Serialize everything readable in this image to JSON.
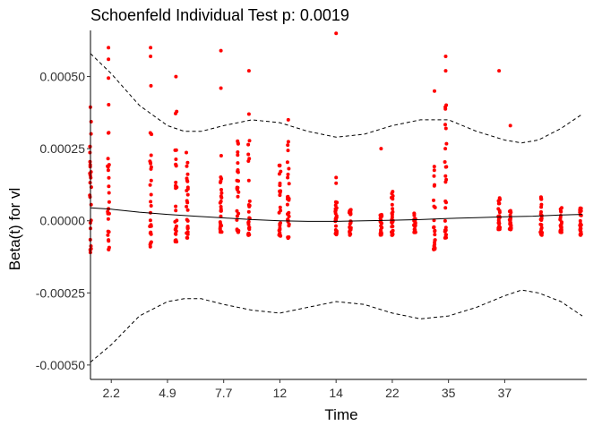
{
  "chart_data": {
    "type": "scatter",
    "title": "Schoenfeld Individual Test p: 0.0019",
    "xlabel": "Time",
    "ylabel": "Beta(t) for vl",
    "x_tick_labels": [
      "2.2",
      "4.9",
      "7.7",
      "12",
      "14",
      "22",
      "35",
      "37"
    ],
    "x_tick_index": [
      1,
      2,
      3,
      4,
      5,
      6,
      7,
      8
    ],
    "xlim": [
      0.63,
      9.46
    ],
    "y_ticks": [
      -0.0005,
      -0.00025,
      0,
      0.00025,
      0.0005
    ],
    "y_tick_labels": [
      "-0.00050",
      "-0.00025",
      "0.00000",
      "0.00025",
      "0.00050"
    ],
    "ylim": [
      -0.00055,
      0.00066
    ],
    "grid": false,
    "point_color": "#ff0000",
    "line_color": "#000000",
    "smooth_fit": {
      "x": [
        0.63,
        1.0,
        1.5,
        2.0,
        2.5,
        3.0,
        3.5,
        4.0,
        4.5,
        5.0,
        5.5,
        6.0,
        6.5,
        7.0,
        7.5,
        8.0,
        8.5,
        9.0,
        9.38
      ],
      "y": [
        4.5e-05,
        4e-05,
        3e-05,
        2.2e-05,
        1.6e-05,
        1e-05,
        4e-06,
        0.0,
        -2e-06,
        -2e-06,
        0.0,
        2e-06,
        4e-06,
        8e-06,
        1.1e-05,
        1.4e-05,
        1.6e-05,
        2e-05,
        2.2e-05
      ]
    },
    "upper_ci": {
      "x": [
        0.63,
        1.0,
        1.5,
        2.0,
        2.3,
        2.6,
        3.0,
        3.5,
        4.0,
        4.5,
        5.0,
        5.5,
        6.0,
        6.5,
        7.0,
        7.5,
        8.0,
        8.3,
        8.6,
        9.0,
        9.38
      ],
      "y": [
        0.00058,
        0.00051,
        0.0004,
        0.00033,
        0.00031,
        0.00031,
        0.00033,
        0.00035,
        0.00034,
        0.00031,
        0.00029,
        0.0003,
        0.00033,
        0.00035,
        0.00035,
        0.00031,
        0.00028,
        0.00027,
        0.00028,
        0.00032,
        0.00037
      ]
    },
    "lower_ci": {
      "x": [
        0.63,
        1.0,
        1.5,
        2.0,
        2.3,
        2.6,
        3.0,
        3.5,
        4.0,
        4.5,
        5.0,
        5.5,
        6.0,
        6.5,
        7.0,
        7.5,
        8.0,
        8.3,
        8.6,
        9.0,
        9.38
      ],
      "y": [
        -0.00049,
        -0.00043,
        -0.00033,
        -0.00028,
        -0.00027,
        -0.00027,
        -0.00029,
        -0.00031,
        -0.00032,
        -0.0003,
        -0.00028,
        -0.00029,
        -0.00032,
        -0.00034,
        -0.00033,
        -0.0003,
        -0.00026,
        -0.00024,
        -0.00025,
        -0.00028,
        -0.00033
      ]
    },
    "columns": [
      {
        "x": 0.63,
        "min": -0.00012,
        "max": 0.00042,
        "outliers": []
      },
      {
        "x": 0.95,
        "min": -0.0001,
        "max": 0.0005,
        "outliers": [
          0.00056,
          0.0006
        ]
      },
      {
        "x": 1.7,
        "min": -9e-05,
        "max": 0.0005,
        "outliers": [
          0.0006,
          0.00057
        ]
      },
      {
        "x": 2.15,
        "min": -8e-05,
        "max": 0.00044,
        "outliers": [
          0.0005
        ]
      },
      {
        "x": 2.35,
        "min": -6e-05,
        "max": 0.00025,
        "outliers": []
      },
      {
        "x": 2.95,
        "min": -4e-05,
        "max": 0.00024,
        "outliers": [
          0.00046,
          0.00059
        ]
      },
      {
        "x": 3.25,
        "min": -4e-05,
        "max": 0.00028,
        "outliers": []
      },
      {
        "x": 3.45,
        "min": -5e-05,
        "max": 0.00033,
        "outliers": [
          0.00037,
          0.00052
        ]
      },
      {
        "x": 4.0,
        "min": -6e-05,
        "max": 0.00021,
        "outliers": []
      },
      {
        "x": 4.15,
        "min": -6e-05,
        "max": 0.0003,
        "outliers": [
          0.00035
        ]
      },
      {
        "x": 5.0,
        "min": -5e-05,
        "max": 9e-05,
        "outliers": [
          0.00013,
          0.00015,
          0.00065
        ]
      },
      {
        "x": 5.25,
        "min": -5e-05,
        "max": 4e-05,
        "outliers": []
      },
      {
        "x": 5.8,
        "min": -5e-05,
        "max": 3e-05,
        "outliers": [
          0.00025
        ]
      },
      {
        "x": 6.0,
        "min": -5e-05,
        "max": 0.00011,
        "outliers": []
      },
      {
        "x": 6.4,
        "min": -4e-05,
        "max": 4e-05,
        "outliers": []
      },
      {
        "x": 6.75,
        "min": -0.0001,
        "max": 0.0002,
        "outliers": [
          0.00045
        ]
      },
      {
        "x": 6.95,
        "min": -6e-05,
        "max": 0.00046,
        "outliers": [
          0.00052,
          0.00057
        ]
      },
      {
        "x": 7.9,
        "min": -3e-05,
        "max": 8e-05,
        "outliers": [
          0.00052
        ]
      },
      {
        "x": 8.1,
        "min": -3e-05,
        "max": 4e-05,
        "outliers": [
          0.00033
        ]
      },
      {
        "x": 8.65,
        "min": -5e-05,
        "max": 0.0001,
        "outliers": []
      },
      {
        "x": 9.0,
        "min": -4e-05,
        "max": 5e-05,
        "outliers": []
      },
      {
        "x": 9.35,
        "min": -5e-05,
        "max": 5e-05,
        "outliers": []
      }
    ]
  }
}
